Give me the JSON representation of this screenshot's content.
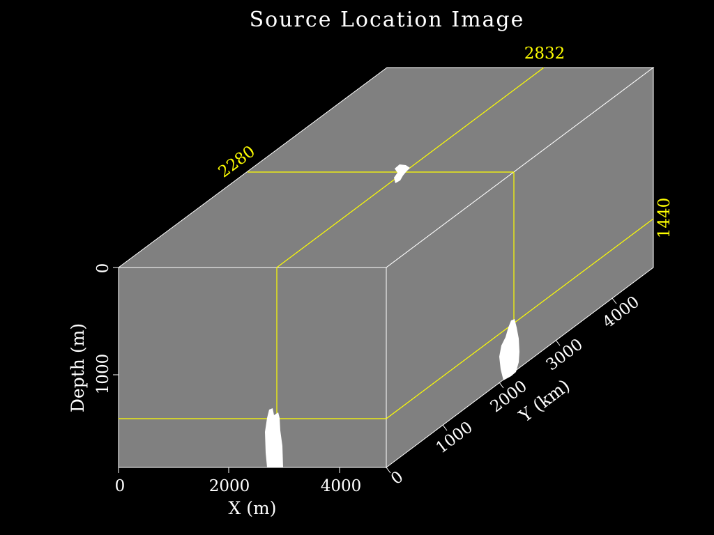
{
  "title": "Source Location Image",
  "colors": {
    "background": "#000000",
    "face": "#808080",
    "edge": "#ffffff",
    "slice_line": "#ffff00",
    "source": "#ffffff"
  },
  "slices": {
    "x_value": "2832",
    "y_value": "2280",
    "depth_value": "1440"
  },
  "axes": {
    "x": {
      "label": "X (m)",
      "ticks": [
        "0",
        "2000",
        "4000"
      ]
    },
    "y": {
      "label": "Y (km)",
      "ticks": [
        "0",
        "1000",
        "2000",
        "3000",
        "4000"
      ]
    },
    "depth": {
      "label": "Depth (m)",
      "ticks": [
        "0",
        "1000"
      ]
    }
  }
}
